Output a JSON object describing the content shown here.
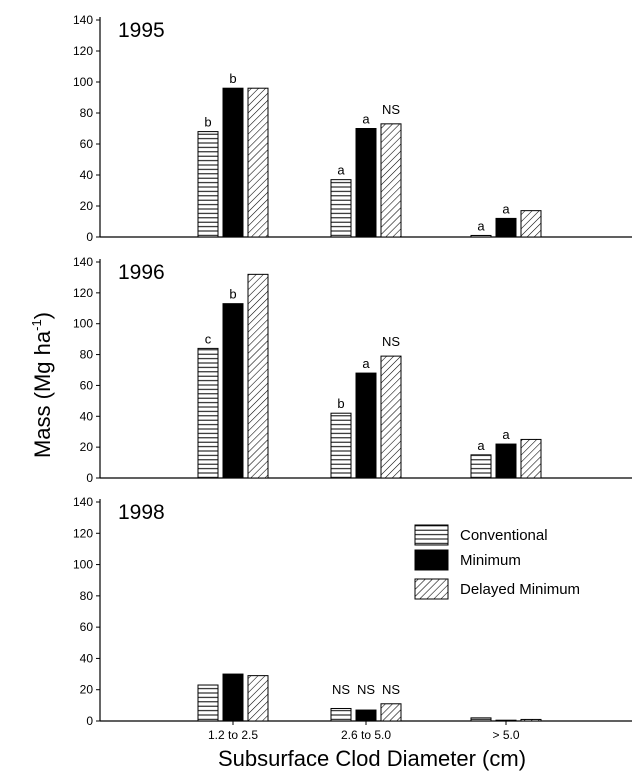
{
  "chart_data": {
    "type": "bar",
    "xlabel": "Subsurface Clod Diameter (cm)",
    "ylabel": "Mass (Mg ha",
    "ylabel_superscript": "-1",
    "ylabel_close": ")",
    "ylim": [
      0,
      140
    ],
    "yticks": [
      "0",
      "20",
      "40",
      "60",
      "80",
      "100",
      "120",
      "140"
    ],
    "categories": [
      "1.2 to 2.5",
      "2.6 to 5.0",
      "> 5.0"
    ],
    "legend": {
      "placement": "upper-right of bottom panel",
      "entries": [
        "Conventional",
        "Minimum",
        "Delayed Minimum"
      ]
    },
    "series_patterns": [
      "horizontal-lines",
      "solid-black",
      "diagonal-hatch"
    ],
    "panels": [
      {
        "year": "1995",
        "series": [
          {
            "name": "Conventional",
            "values": [
              68,
              37,
              1
            ]
          },
          {
            "name": "Minimum",
            "values": [
              96,
              70,
              12
            ]
          },
          {
            "name": "Delayed Minimum",
            "values": [
              96,
              73,
              17
            ]
          }
        ],
        "annotations": [
          [
            "b",
            "a",
            "a"
          ],
          [
            "b",
            "a",
            "a"
          ],
          [
            "",
            "NS",
            ""
          ]
        ]
      },
      {
        "year": "1996",
        "series": [
          {
            "name": "Conventional",
            "values": [
              84,
              42,
              15
            ]
          },
          {
            "name": "Minimum",
            "values": [
              113,
              68,
              22
            ]
          },
          {
            "name": "Delayed Minimum",
            "values": [
              132,
              79,
              25
            ]
          }
        ],
        "annotations": [
          [
            "c",
            "b",
            "a"
          ],
          [
            "b",
            "a",
            "a"
          ],
          [
            "",
            "NS",
            ""
          ]
        ]
      },
      {
        "year": "1998",
        "series": [
          {
            "name": "Conventional",
            "values": [
              23,
              8,
              2
            ]
          },
          {
            "name": "Minimum",
            "values": [
              30,
              7,
              0.5
            ]
          },
          {
            "name": "Delayed Minimum",
            "values": [
              29,
              11,
              1
            ]
          }
        ],
        "annotations": [
          [
            "",
            "NS",
            ""
          ],
          [
            "",
            "NS",
            ""
          ],
          [
            "",
            "NS",
            ""
          ]
        ]
      }
    ]
  }
}
